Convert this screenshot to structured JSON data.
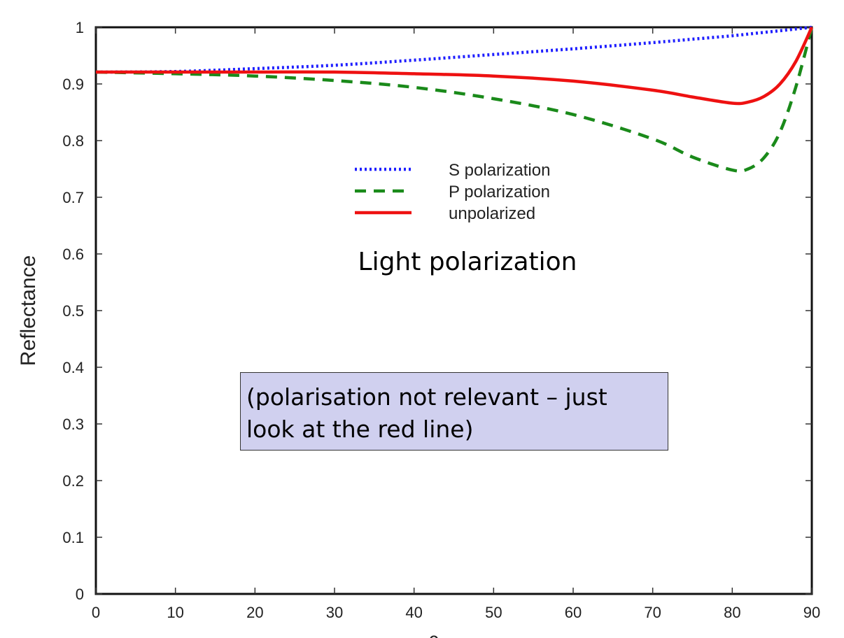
{
  "chart_data": {
    "type": "line",
    "title": "",
    "overlay_title": "Light polarization",
    "xlabel": "θ",
    "ylabel": "Reflectance",
    "xlim": [
      0,
      90
    ],
    "ylim": [
      0,
      1
    ],
    "xticks": [
      0,
      10,
      20,
      30,
      40,
      50,
      60,
      70,
      80,
      90
    ],
    "yticks": [
      0,
      0.1,
      0.2,
      0.3,
      0.4,
      0.5,
      0.6,
      0.7,
      0.8,
      0.9,
      1
    ],
    "ytick_labels": [
      "0",
      "0.1",
      "0.2",
      "0.3",
      "0.4",
      "0.5",
      "0.6",
      "0.7",
      "0.8",
      "0.9",
      "1"
    ],
    "grid": false,
    "legend_position": "upper-center",
    "x": [
      0,
      10,
      20,
      30,
      40,
      50,
      60,
      70,
      75,
      80,
      82,
      84,
      86,
      88,
      90
    ],
    "series": [
      {
        "name": "S polarization",
        "color": "#1f1fff",
        "style": "dotted",
        "values": [
          0.921,
          0.922,
          0.927,
          0.933,
          0.942,
          0.952,
          0.962,
          0.973,
          0.979,
          0.985,
          0.988,
          0.991,
          0.994,
          0.997,
          1.0
        ]
      },
      {
        "name": "P polarization",
        "color": "#1a8a1a",
        "style": "dashed",
        "values": [
          0.921,
          0.918,
          0.914,
          0.906,
          0.894,
          0.874,
          0.846,
          0.803,
          0.771,
          0.748,
          0.75,
          0.77,
          0.815,
          0.895,
          1.0
        ]
      },
      {
        "name": "unpolarized",
        "color": "#ee1111",
        "style": "solid",
        "values": [
          0.921,
          0.921,
          0.921,
          0.921,
          0.918,
          0.914,
          0.905,
          0.889,
          0.877,
          0.866,
          0.868,
          0.878,
          0.9,
          0.94,
          1.0
        ]
      }
    ]
  },
  "note": {
    "line1": "(polarisation not relevant – just",
    "line2": "look at the red line)"
  }
}
